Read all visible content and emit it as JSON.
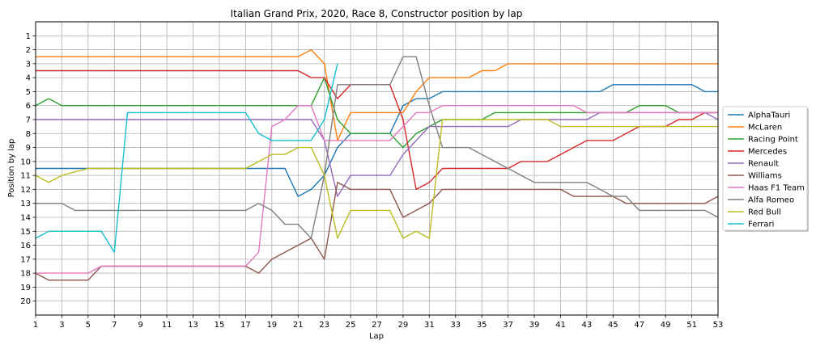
{
  "chart_data": {
    "type": "line",
    "title": "Italian Grand Prix, 2020, Race 8, Constructor position by lap",
    "xlabel": "Lap",
    "ylabel": "Position by lap",
    "xlim": [
      1,
      53
    ],
    "ylim": [
      21,
      0
    ],
    "x_ticks": [
      "1",
      "3",
      "5",
      "7",
      "9",
      "11",
      "13",
      "15",
      "17",
      "19",
      "21",
      "23",
      "25",
      "27",
      "29",
      "31",
      "33",
      "35",
      "37",
      "39",
      "41",
      "43",
      "45",
      "47",
      "49",
      "51",
      "53"
    ],
    "y_ticks": [
      "1",
      "2",
      "3",
      "4",
      "5",
      "6",
      "7",
      "8",
      "9",
      "10",
      "11",
      "12",
      "13",
      "14",
      "15",
      "16",
      "17",
      "18",
      "19",
      "20"
    ],
    "grid": true,
    "legend_position": "right",
    "series": [
      {
        "name": "AlphaTauri",
        "color": "#1f77b4",
        "points": [
          [
            1,
            10.5
          ],
          [
            4,
            10.5
          ],
          [
            5,
            10.5
          ],
          [
            19,
            10.5
          ],
          [
            20,
            10.5
          ],
          [
            21,
            12.5
          ],
          [
            22,
            12
          ],
          [
            23,
            11
          ],
          [
            24,
            9
          ],
          [
            25,
            8
          ],
          [
            26,
            8
          ],
          [
            28,
            8
          ],
          [
            29,
            6
          ],
          [
            30,
            5.5
          ],
          [
            31,
            5.5
          ],
          [
            32,
            5
          ],
          [
            44,
            5
          ],
          [
            45,
            4.5
          ],
          [
            50,
            4.5
          ],
          [
            51,
            4.5
          ],
          [
            52,
            5
          ],
          [
            53,
            5
          ]
        ]
      },
      {
        "name": "McLaren",
        "color": "#ff7f0e",
        "points": [
          [
            1,
            2.5
          ],
          [
            20,
            2.5
          ],
          [
            21,
            2.5
          ],
          [
            22,
            2
          ],
          [
            23,
            3
          ],
          [
            24,
            8.5
          ],
          [
            25,
            6.5
          ],
          [
            28,
            6.5
          ],
          [
            29,
            6.5
          ],
          [
            30,
            5
          ],
          [
            31,
            4
          ],
          [
            34,
            4
          ],
          [
            35,
            3.5
          ],
          [
            36,
            3.5
          ],
          [
            37,
            3
          ],
          [
            53,
            3
          ]
        ]
      },
      {
        "name": "Racing Point",
        "color": "#2ca02c",
        "points": [
          [
            1,
            6
          ],
          [
            2,
            5.5
          ],
          [
            3,
            6
          ],
          [
            21,
            6
          ],
          [
            22,
            6
          ],
          [
            23,
            4
          ],
          [
            24,
            7
          ],
          [
            25,
            8
          ],
          [
            28,
            8
          ],
          [
            29,
            9
          ],
          [
            30,
            8
          ],
          [
            31,
            7.5
          ],
          [
            32,
            7
          ],
          [
            34,
            7
          ],
          [
            35,
            7
          ],
          [
            36,
            6.5
          ],
          [
            46,
            6.5
          ],
          [
            47,
            6
          ],
          [
            49,
            6
          ],
          [
            50,
            6.5
          ],
          [
            53,
            6.5
          ]
        ]
      },
      {
        "name": "Mercedes",
        "color": "#d62728",
        "points": [
          [
            1,
            3.5
          ],
          [
            21,
            3.5
          ],
          [
            22,
            4
          ],
          [
            23,
            4
          ],
          [
            24,
            5.5
          ],
          [
            25,
            4.5
          ],
          [
            28,
            4.5
          ],
          [
            29,
            7
          ],
          [
            30,
            12
          ],
          [
            31,
            11.5
          ],
          [
            32,
            10.5
          ],
          [
            36,
            10.5
          ],
          [
            37,
            10.5
          ],
          [
            38,
            10
          ],
          [
            40,
            10
          ],
          [
            43,
            8.5
          ],
          [
            45,
            8.5
          ],
          [
            47,
            7.5
          ],
          [
            49,
            7.5
          ],
          [
            50,
            7
          ],
          [
            51,
            7
          ],
          [
            52,
            6.5
          ],
          [
            53,
            6.5
          ]
        ]
      },
      {
        "name": "Renault",
        "color": "#9467bd",
        "points": [
          [
            1,
            7
          ],
          [
            21,
            7
          ],
          [
            22,
            7
          ],
          [
            23,
            8.5
          ],
          [
            24,
            12.5
          ],
          [
            25,
            11
          ],
          [
            28,
            11
          ],
          [
            29,
            9.5
          ],
          [
            30,
            8.5
          ],
          [
            31,
            7.5
          ],
          [
            37,
            7.5
          ],
          [
            38,
            7
          ],
          [
            42,
            7
          ],
          [
            43,
            7
          ],
          [
            44,
            6.5
          ],
          [
            52,
            6.5
          ],
          [
            53,
            7
          ]
        ]
      },
      {
        "name": "Williams",
        "color": "#8c564b",
        "points": [
          [
            1,
            18
          ],
          [
            2,
            18.5
          ],
          [
            5,
            18.5
          ],
          [
            6,
            17.5
          ],
          [
            17,
            17.5
          ],
          [
            18,
            18
          ],
          [
            19,
            17
          ],
          [
            20,
            16.5
          ],
          [
            22,
            15.5
          ],
          [
            23,
            17
          ],
          [
            24,
            11.5
          ],
          [
            25,
            12
          ],
          [
            28,
            12
          ],
          [
            29,
            14
          ],
          [
            30,
            13.5
          ],
          [
            31,
            13
          ],
          [
            32,
            12
          ],
          [
            41,
            12
          ],
          [
            42,
            12.5
          ],
          [
            45,
            12.5
          ],
          [
            46,
            13
          ],
          [
            51,
            13
          ],
          [
            52,
            13
          ],
          [
            53,
            12.5
          ],
          [
            54,
            12.5
          ]
        ]
      },
      {
        "name": "Haas F1 Team",
        "color": "#e377c2",
        "points": [
          [
            1,
            18
          ],
          [
            5,
            18
          ],
          [
            6,
            17.5
          ],
          [
            17,
            17.5
          ],
          [
            18,
            16.5
          ],
          [
            19,
            7.5
          ],
          [
            20,
            7
          ],
          [
            21,
            6
          ],
          [
            22,
            6
          ],
          [
            23,
            8.5
          ],
          [
            24,
            8.5
          ],
          [
            28,
            8.5
          ],
          [
            29,
            7.5
          ],
          [
            30,
            6.5
          ],
          [
            31,
            6.5
          ],
          [
            32,
            6
          ],
          [
            42,
            6
          ],
          [
            43,
            6.5
          ],
          [
            52,
            6.5
          ],
          [
            53,
            6.5
          ],
          [
            54,
            6
          ]
        ]
      },
      {
        "name": "Alfa Romeo",
        "color": "#7f7f7f",
        "points": [
          [
            1,
            13
          ],
          [
            3,
            13
          ],
          [
            4,
            13.5
          ],
          [
            17,
            13.5
          ],
          [
            18,
            13
          ],
          [
            19,
            13.5
          ],
          [
            20,
            14.5
          ],
          [
            21,
            14.5
          ],
          [
            22,
            15.5
          ],
          [
            23,
            11
          ],
          [
            24,
            4.5
          ],
          [
            28,
            4.5
          ],
          [
            29,
            2.5
          ],
          [
            30,
            2.5
          ],
          [
            31,
            6
          ],
          [
            32,
            9
          ],
          [
            34,
            9
          ],
          [
            37,
            10.5
          ],
          [
            39,
            11.5
          ],
          [
            43,
            11.5
          ],
          [
            44,
            12
          ],
          [
            45,
            12.5
          ],
          [
            46,
            12.5
          ],
          [
            47,
            13.5
          ],
          [
            52,
            13.5
          ],
          [
            54,
            14.5
          ]
        ]
      },
      {
        "name": "Red Bull",
        "color": "#bcbd22",
        "points": [
          [
            1,
            11
          ],
          [
            2,
            11.5
          ],
          [
            3,
            11
          ],
          [
            5,
            10.5
          ],
          [
            17,
            10.5
          ],
          [
            18,
            10
          ],
          [
            19,
            9.5
          ],
          [
            20,
            9.5
          ],
          [
            21,
            9
          ],
          [
            22,
            9
          ],
          [
            23,
            11
          ],
          [
            24,
            15.5
          ],
          [
            25,
            13.5
          ],
          [
            28,
            13.5
          ],
          [
            29,
            15.5
          ],
          [
            30,
            15
          ],
          [
            31,
            15.5
          ],
          [
            32,
            7
          ],
          [
            38,
            7
          ],
          [
            40,
            7
          ],
          [
            41,
            7.5
          ],
          [
            53,
            7.5
          ],
          [
            54,
            7.5
          ]
        ]
      },
      {
        "name": "Ferrari",
        "color": "#17becf",
        "points": [
          [
            1,
            15.5
          ],
          [
            2,
            15
          ],
          [
            5,
            15
          ],
          [
            6,
            15
          ],
          [
            7,
            16.5
          ],
          [
            8,
            6.5
          ],
          [
            17,
            6.5
          ],
          [
            18,
            8
          ],
          [
            19,
            8.5
          ],
          [
            22,
            8.5
          ],
          [
            23,
            7
          ],
          [
            24,
            3
          ]
        ]
      }
    ]
  }
}
